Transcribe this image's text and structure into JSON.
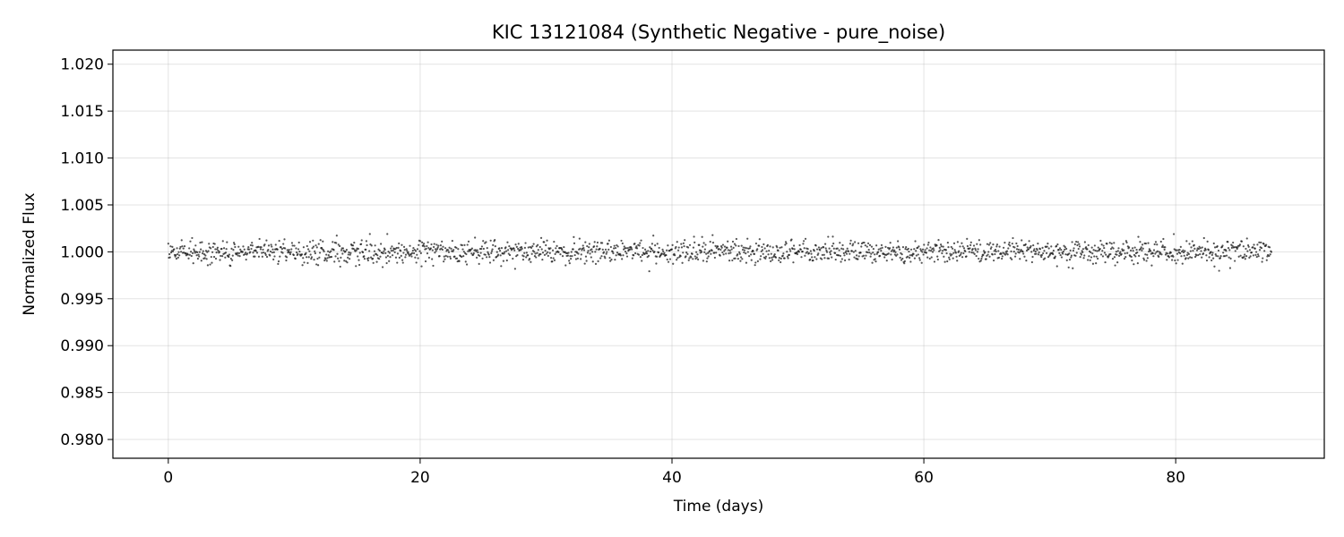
{
  "chart_data": {
    "type": "scatter",
    "title": "KIC 13121084 (Synthetic Negative - pure_noise)",
    "xlabel": "Time (days)",
    "ylabel": "Normalized Flux",
    "xlim": [
      -4.4,
      91.8
    ],
    "ylim": [
      0.978,
      1.0215
    ],
    "xticks": [
      0,
      20,
      40,
      60,
      80
    ],
    "xtick_labels": [
      "0",
      "20",
      "40",
      "60",
      "80"
    ],
    "yticks": [
      0.98,
      0.985,
      0.99,
      0.995,
      1.0,
      1.005,
      1.01,
      1.015,
      1.02
    ],
    "ytick_labels": [
      "0.980",
      "0.985",
      "0.990",
      "0.995",
      "1.000",
      "1.005",
      "1.010",
      "1.015",
      "1.020"
    ],
    "grid": true,
    "series": [
      {
        "name": "flux",
        "color": "#1a1a1a",
        "x_start": 0.0,
        "x_end": 87.6,
        "n_points": 1900,
        "mean": 1.0,
        "std": 0.0006,
        "y_min": 0.9978,
        "y_max": 1.0019
      }
    ]
  }
}
